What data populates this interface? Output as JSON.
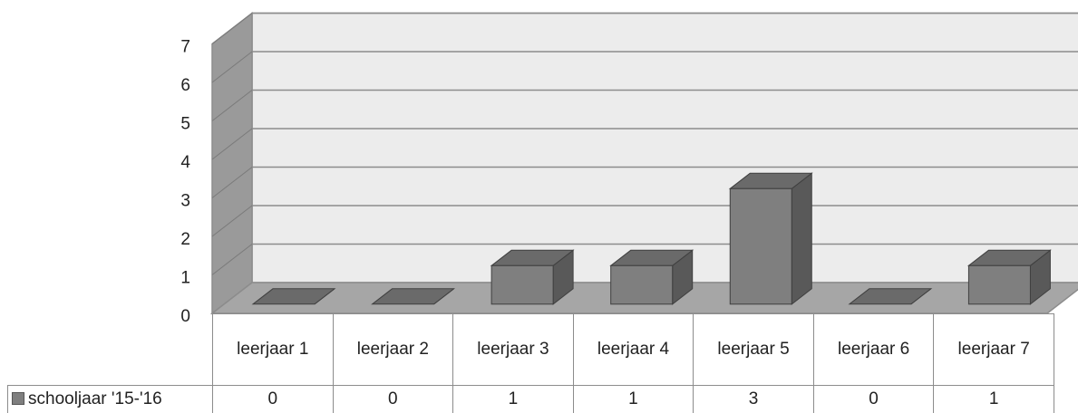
{
  "chart_data": {
    "type": "bar3d",
    "categories": [
      "leerjaar 1",
      "leerjaar 2",
      "leerjaar 3",
      "leerjaar 4",
      "leerjaar 5",
      "leerjaar 6",
      "leerjaar 7"
    ],
    "series": [
      {
        "name": "schooljaar '15-'16",
        "color": "#7f7f7f",
        "values": [
          0,
          0,
          1,
          1,
          3,
          0,
          1
        ]
      }
    ],
    "ylim": [
      0,
      7
    ],
    "yticks": [
      0,
      1,
      2,
      3,
      4,
      5,
      6,
      7
    ],
    "grid": true,
    "legend": "table"
  }
}
